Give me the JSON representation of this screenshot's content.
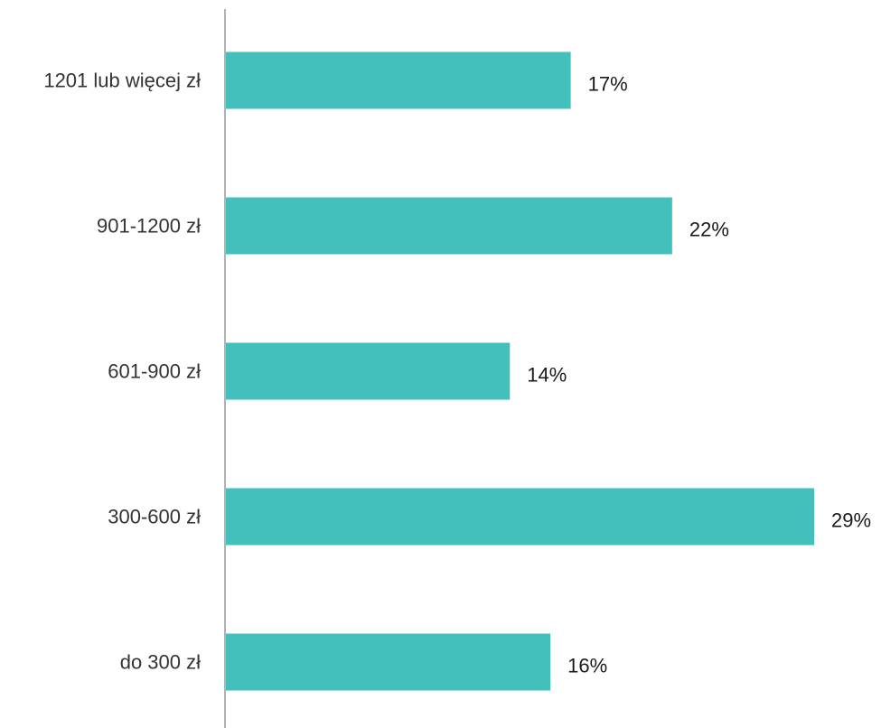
{
  "chart_data": {
    "type": "bar",
    "orientation": "horizontal",
    "categories": [
      "1201 lub więcej zł",
      "901-1200 zł",
      "601-900 zł",
      "300-600 zł",
      "do 300 zł"
    ],
    "values": [
      17,
      22,
      14,
      29,
      16
    ],
    "value_labels": [
      "17%",
      "22%",
      "14%",
      "29%",
      "16%"
    ],
    "unit": "%",
    "xlim": [
      0,
      29
    ],
    "grid": false,
    "legend": "none",
    "bar_color": "#43bfbc",
    "axis_color": "#999999"
  }
}
